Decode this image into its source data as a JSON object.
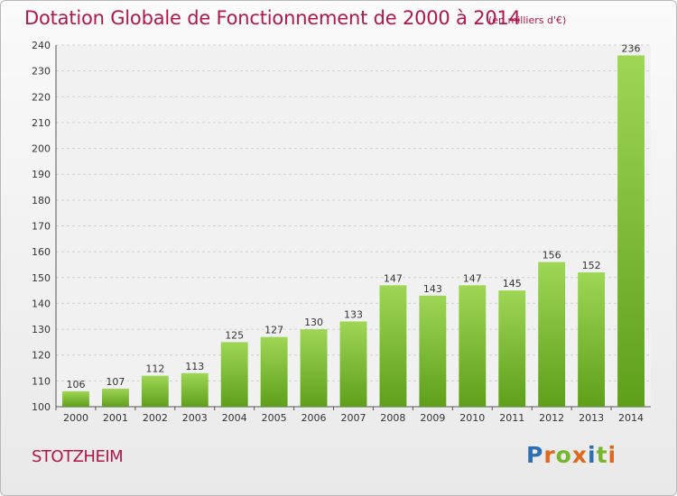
{
  "header": {
    "title": "Dotation Globale de Fonctionnement de 2000 à 2014",
    "subtitle": "(en milliers d'€)"
  },
  "footer": {
    "commune": "STOTZHEIM",
    "logo_text": "Proxiti"
  },
  "colors": {
    "title": "#b2164c",
    "bar_light": "#9ed655",
    "bar_dark": "#5e9f1a",
    "logo": [
      "#2b6fb6",
      "#e0671c",
      "#74b52a",
      "#e0671c",
      "#2b6fb6",
      "#74b52a",
      "#e0671c"
    ]
  },
  "chart_data": {
    "type": "bar",
    "title": "Dotation Globale de Fonctionnement de 2000 à 2014",
    "subtitle": "(en milliers d'€)",
    "xlabel": "",
    "ylabel": "",
    "categories": [
      "2000",
      "2001",
      "2002",
      "2003",
      "2004",
      "2005",
      "2006",
      "2007",
      "2008",
      "2009",
      "2010",
      "2011",
      "2012",
      "2013",
      "2014"
    ],
    "values": [
      106,
      107,
      112,
      113,
      125,
      127,
      130,
      133,
      147,
      143,
      147,
      145,
      156,
      152,
      236
    ],
    "ylim": [
      100,
      240
    ],
    "yticks": [
      100,
      110,
      120,
      130,
      140,
      150,
      160,
      170,
      180,
      190,
      200,
      210,
      220,
      230,
      240
    ],
    "grid": true,
    "data_labels": true,
    "legend": "none"
  }
}
